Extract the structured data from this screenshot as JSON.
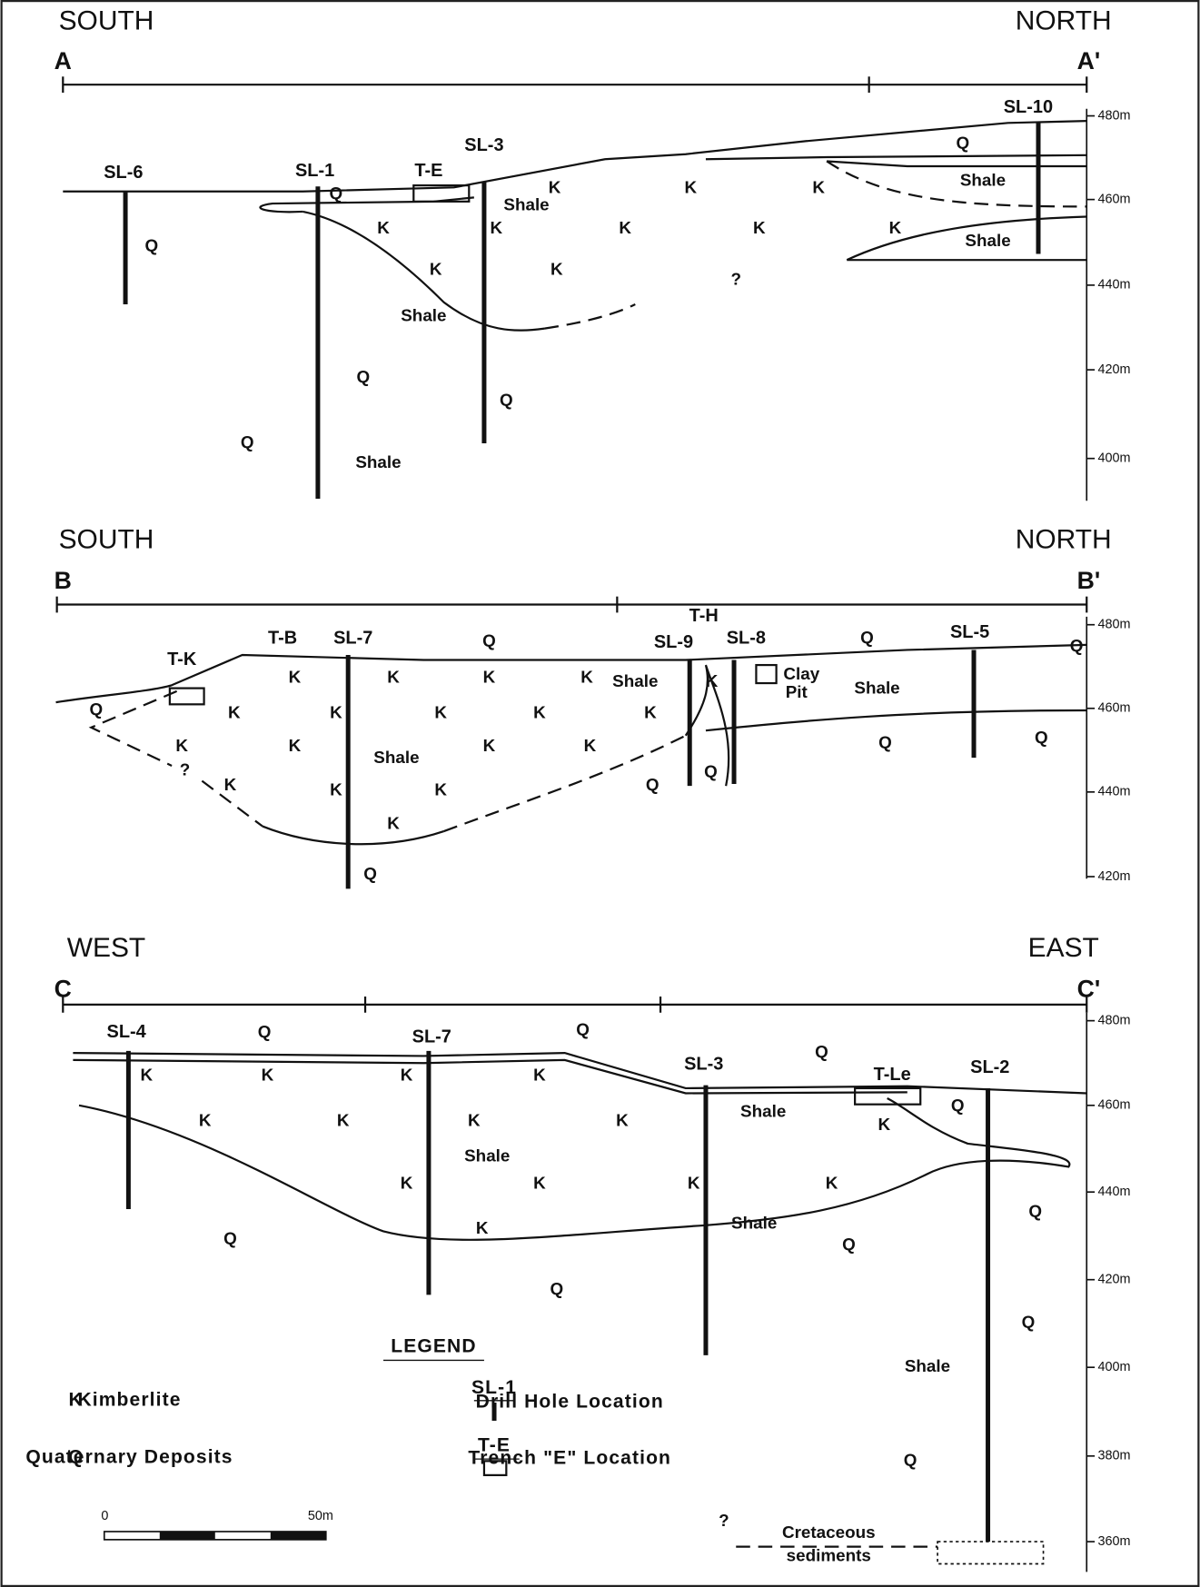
{
  "sections": [
    {
      "left": "SOUTH",
      "right": "NORTH",
      "start": "A",
      "end": "A'",
      "elevations": [
        "480m",
        "460m",
        "440m",
        "420m",
        "400m"
      ],
      "holes": [
        "SL-6",
        "SL-1",
        "T-E",
        "SL-3",
        "SL-10"
      ],
      "labels": [
        "Q",
        "K",
        "K",
        "K",
        "Q",
        "Shale",
        "Shale",
        "Q",
        "K",
        "K",
        "K",
        "K",
        "K",
        "Shale",
        "K",
        "K",
        "?",
        "Shale",
        "Q",
        "Q",
        "Q",
        "Shale"
      ]
    },
    {
      "left": "SOUTH",
      "right": "NORTH",
      "start": "B",
      "end": "B'",
      "elevations": [
        "480m",
        "460m",
        "440m",
        "420m"
      ],
      "holes": [
        "T-B",
        "SL-7",
        "T-K",
        "SL-9",
        "T-H",
        "SL-8",
        "SL-5"
      ],
      "labels": [
        "Q",
        "Q",
        "Q",
        "K",
        "K",
        "K",
        "K",
        "Shale",
        "K",
        "Clay",
        "Pit",
        "Shale",
        "Q",
        "K",
        "K",
        "K",
        "K",
        "K",
        "K",
        "K",
        "Shale",
        "K",
        "K",
        "Q",
        "Q",
        "?",
        "K",
        "K",
        "K",
        "Q",
        "Q",
        "K",
        "Q"
      ]
    },
    {
      "left": "WEST",
      "right": "EAST",
      "start": "C",
      "end": "C'",
      "elevations": [
        "480m",
        "460m",
        "440m",
        "420m",
        "400m",
        "380m",
        "360m"
      ],
      "holes": [
        "SL-4",
        "SL-7",
        "SL-3",
        "T-Le",
        "SL-2"
      ],
      "labels": [
        "Q",
        "Q",
        "Q",
        "K",
        "K",
        "K",
        "K",
        "K",
        "K",
        "K",
        "K",
        "Shale",
        "K",
        "Q",
        "Shale",
        "K",
        "K",
        "K",
        "K",
        "Shale",
        "K",
        "Q",
        "Q",
        "Q",
        "Q",
        "Q",
        "Shale",
        "Q",
        "?",
        "Cretaceous",
        "sediments"
      ]
    }
  ],
  "legend": {
    "title": "LEGEND",
    "items": [
      {
        "symbol": "K",
        "text": "Kimberlite"
      },
      {
        "symbol": "Q",
        "text": "Quaternary Deposits"
      },
      {
        "symbol": "SL-1",
        "text": "Drill Hole Location"
      },
      {
        "symbol": "T-E",
        "text": "Trench \"E\" Location"
      }
    ],
    "scale": [
      "0",
      "50m"
    ]
  }
}
